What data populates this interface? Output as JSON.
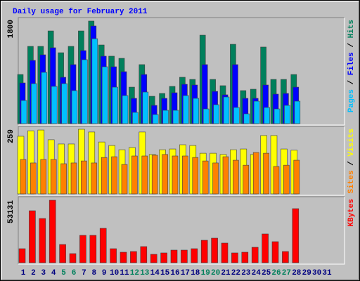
{
  "title": "Daily usage for February 2011",
  "legend_separator": " / ",
  "chart_data": [
    {
      "type": "bar",
      "ylim": [
        0,
        1800
      ],
      "yticks": [
        1800
      ],
      "series": [
        {
          "name": "Hits",
          "color": "#00805c",
          "values": [
            851,
            1338,
            1338,
            1605,
            1228,
            1338,
            1605,
            1776,
            1362,
            1168,
            1131,
            632,
            1022,
            474,
            523,
            645,
            803,
            766,
            1532,
            766,
            657,
            1374,
            572,
            596,
            1326,
            766,
            766,
            851,
            null,
            null,
            null
          ]
        },
        {
          "name": "Files",
          "color": "#0000ff",
          "values": [
            705,
            1095,
            1192,
            1314,
            803,
            1022,
            1265,
            1691,
            1168,
            985,
            900,
            438,
            851,
            316,
            438,
            535,
            681,
            669,
            1022,
            559,
            499,
            1022,
            438,
            438,
            669,
            511,
            523,
            632,
            null,
            null,
            null
          ]
        },
        {
          "name": "Pages",
          "color": "#00c0ff",
          "values": [
            401,
            693,
            888,
            645,
            693,
            572,
            1107,
            1471,
            985,
            632,
            486,
            195,
            547,
            158,
            231,
            231,
            486,
            438,
            255,
            328,
            462,
            280,
            170,
            389,
            280,
            255,
            316,
            389,
            null,
            null,
            null
          ]
        }
      ]
    },
    {
      "type": "bar",
      "ylim": [
        0,
        259
      ],
      "yticks": [
        259
      ],
      "series": [
        {
          "name": "Visits",
          "color": "#ffff00",
          "values": [
            231,
            253,
            256,
            217,
            200,
            200,
            259,
            248,
            208,
            194,
            177,
            186,
            248,
            158,
            177,
            180,
            197,
            194,
            163,
            163,
            158,
            177,
            180,
            158,
            234,
            234,
            180,
            175,
            null,
            null,
            null
          ]
        },
        {
          "name": "Sites",
          "color": "#ff8000",
          "values": [
            138,
            124,
            138,
            138,
            121,
            124,
            132,
            124,
            146,
            149,
            118,
            152,
            152,
            155,
            158,
            152,
            152,
            146,
            132,
            124,
            149,
            135,
            115,
            166,
            163,
            110,
            115,
            135,
            null,
            null,
            null
          ]
        }
      ]
    },
    {
      "type": "bar",
      "ylim": [
        0,
        53131
      ],
      "yticks": [
        53131
      ],
      "categories": [
        "1",
        "2",
        "3",
        "4",
        "5",
        "6",
        "7",
        "8",
        "9",
        "10",
        "11",
        "12",
        "13",
        "14",
        "15",
        "16",
        "17",
        "18",
        "19",
        "20",
        "21",
        "22",
        "23",
        "24",
        "25",
        "26",
        "27",
        "28",
        "29",
        "30",
        "31"
      ],
      "category_colors": [
        "#000080",
        "#000080",
        "#000080",
        "#000080",
        "#00805c",
        "#00805c",
        "#000080",
        "#000080",
        "#000080",
        "#000080",
        "#000080",
        "#00805c",
        "#00805c",
        "#000080",
        "#000080",
        "#000080",
        "#000080",
        "#000080",
        "#00805c",
        "#00805c",
        "#000080",
        "#000080",
        "#000080",
        "#000080",
        "#000080",
        "#00805c",
        "#00805c",
        "#000080",
        "#000080",
        "#000080",
        "#000080"
      ],
      "series": [
        {
          "name": "KBytes",
          "color": "#ff0000",
          "values": [
            11940,
            44178,
            37611,
            53131,
            15522,
            7761,
            23283,
            23283,
            29253,
            11940,
            8955,
            9552,
            13731,
            7164,
            8358,
            10746,
            10746,
            11940,
            19104,
            20895,
            16716,
            8358,
            8955,
            13134,
            24477,
            17910,
            9552,
            45969,
            null,
            null,
            null
          ]
        }
      ]
    }
  ]
}
